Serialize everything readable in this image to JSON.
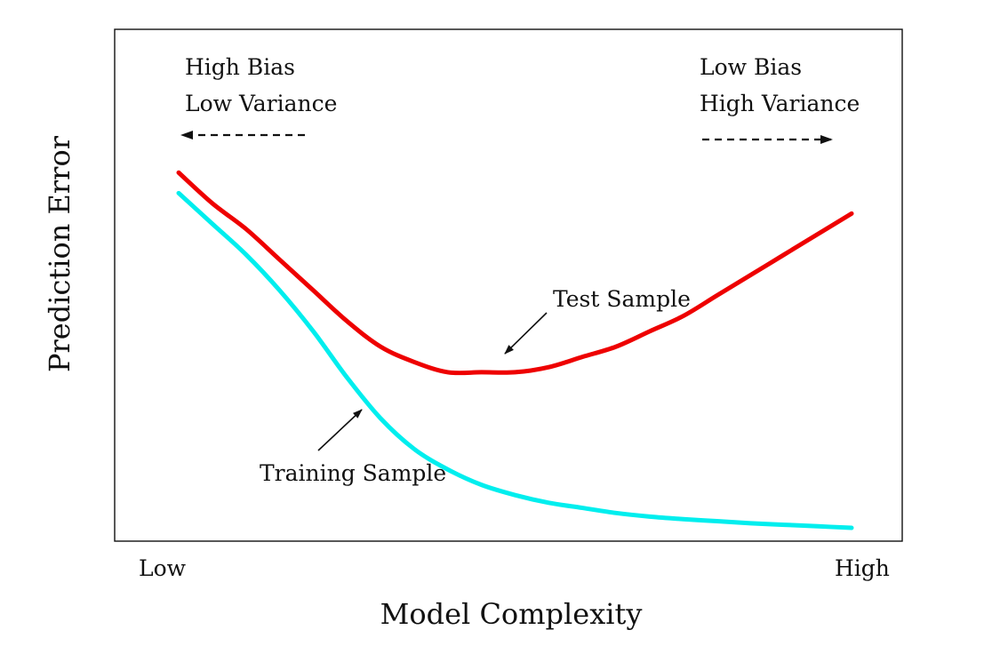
{
  "chart_data": {
    "type": "line",
    "xlabel": "Model Complexity",
    "ylabel": "Prediction Error",
    "x_ticks": [
      "Low",
      "High"
    ],
    "grid": false,
    "annotations": {
      "left": {
        "line1": "High Bias",
        "line2": "Low Variance",
        "direction": "left"
      },
      "right": {
        "line1": "Low Bias",
        "line2": "High Variance",
        "direction": "right"
      }
    },
    "series": [
      {
        "name": "Test Sample",
        "color": "#ee0000",
        "x": [
          0,
          0.05,
          0.1,
          0.15,
          0.2,
          0.25,
          0.3,
          0.35,
          0.4,
          0.45,
          0.5,
          0.55,
          0.6,
          0.65,
          0.7,
          0.75,
          0.8,
          0.85,
          0.9,
          0.95,
          1
        ],
        "values": [
          0.72,
          0.66,
          0.61,
          0.55,
          0.49,
          0.43,
          0.38,
          0.35,
          0.33,
          0.33,
          0.33,
          0.34,
          0.36,
          0.38,
          0.41,
          0.44,
          0.48,
          0.52,
          0.56,
          0.6,
          0.64
        ]
      },
      {
        "name": "Training Sample",
        "color": "#00eeee",
        "x": [
          0,
          0.05,
          0.1,
          0.15,
          0.2,
          0.25,
          0.3,
          0.35,
          0.4,
          0.45,
          0.5,
          0.55,
          0.6,
          0.65,
          0.7,
          0.75,
          0.8,
          0.85,
          0.9,
          0.95,
          1
        ],
        "values": [
          0.68,
          0.62,
          0.56,
          0.49,
          0.41,
          0.32,
          0.24,
          0.18,
          0.14,
          0.11,
          0.09,
          0.075,
          0.065,
          0.055,
          0.048,
          0.043,
          0.039,
          0.035,
          0.032,
          0.029,
          0.026
        ]
      }
    ]
  }
}
